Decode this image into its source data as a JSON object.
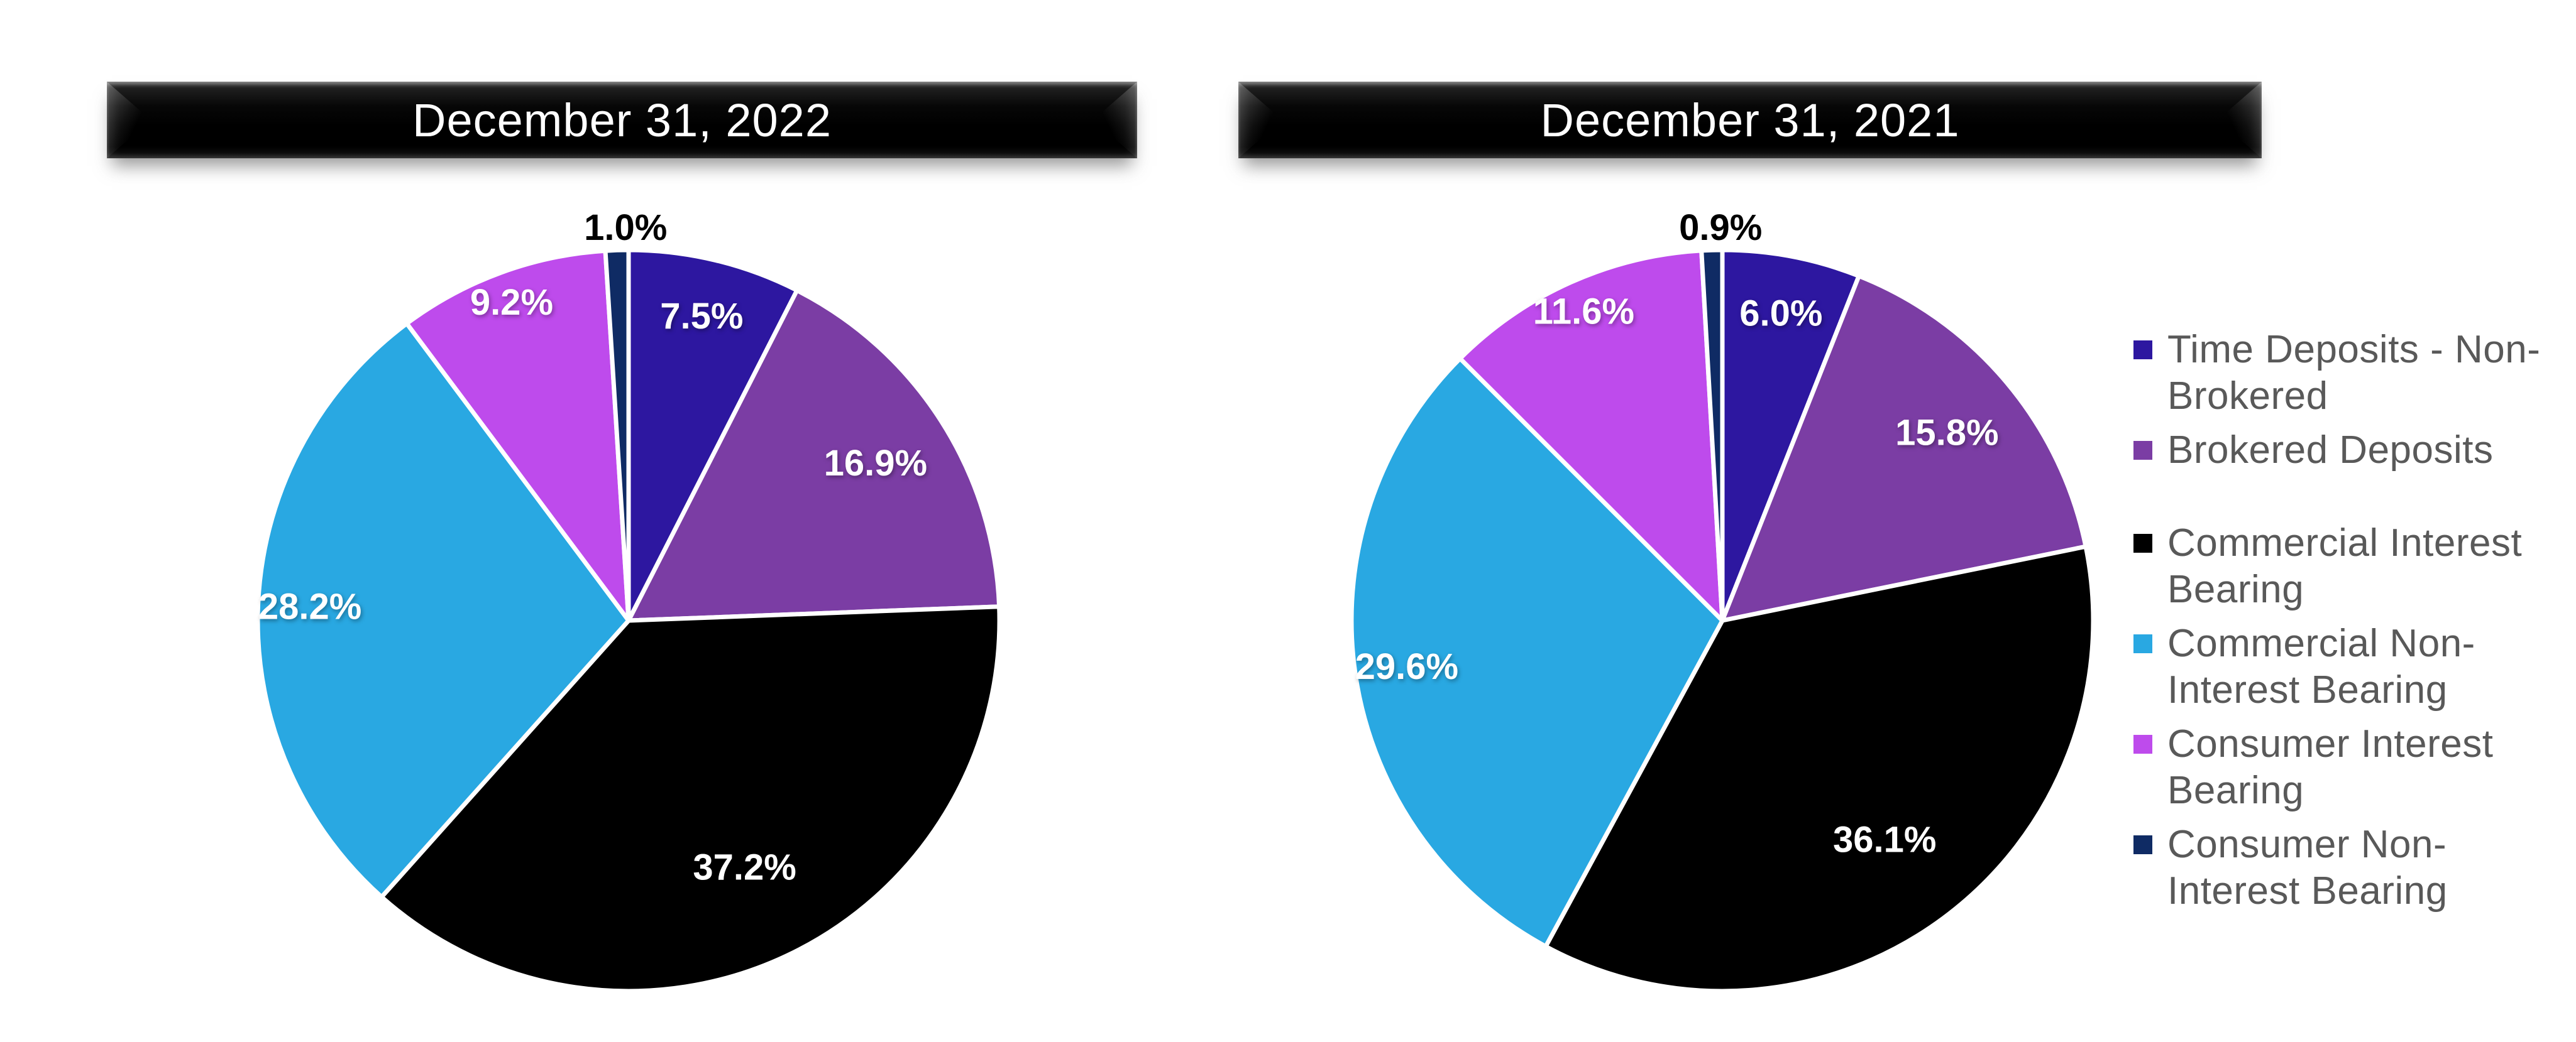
{
  "page": {
    "background_color": "#FFFFFF",
    "legend_text_color": "#595959"
  },
  "chart_data": [
    {
      "type": "pie",
      "title": "December 31, 2022",
      "categories": [
        "Time Deposits - Non-Brokered",
        "Brokered Deposits",
        "Commercial Interest Bearing",
        "Commercial Non-Interest Bearing",
        "Consumer Interest Bearing",
        "Consumer Non-Interest Bearing"
      ],
      "values": [
        7.5,
        16.9,
        37.2,
        28.2,
        9.2,
        1.0
      ],
      "labels": [
        "7.5%",
        "16.9%",
        "37.2%",
        "28.2%",
        "9.2%",
        "1.0%"
      ],
      "colors": [
        "#2D17A0",
        "#7B3DA4",
        "#000000",
        "#29A8E2",
        "#BE4BEC",
        "#0F2B64"
      ],
      "start_angle_deg": 0,
      "direction": "clockwise",
      "slice_border_color": "#FFFFFF",
      "label_color_inside": "#FFFFFF",
      "label_color_outside": "#000000",
      "legend_position": "right"
    },
    {
      "type": "pie",
      "title": "December 31, 2021",
      "categories": [
        "Time Deposits - Non-Brokered",
        "Brokered Deposits",
        "Commercial Interest Bearing",
        "Commercial Non-Interest Bearing",
        "Consumer Interest Bearing",
        "Consumer Non-Interest Bearing"
      ],
      "values": [
        6.0,
        15.8,
        36.1,
        29.6,
        11.6,
        0.9
      ],
      "labels": [
        "6.0%",
        "15.8%",
        "36.1%",
        "29.6%",
        "11.6%",
        "0.9%"
      ],
      "colors": [
        "#2D17A0",
        "#7B3DA4",
        "#000000",
        "#29A8E2",
        "#BE4BEC",
        "#0F2B64"
      ],
      "start_angle_deg": 0,
      "direction": "clockwise",
      "slice_border_color": "#FFFFFF",
      "label_color_inside": "#FFFFFF",
      "label_color_outside": "#000000",
      "legend_position": "right"
    }
  ],
  "legend": {
    "items": [
      {
        "label": "Time Deposits - Non-Brokered",
        "color": "#2D17A0"
      },
      {
        "label": "Brokered Deposits",
        "color": "#7B3DA4"
      },
      {
        "label": "Commercial Interest Bearing",
        "color": "#000000"
      },
      {
        "label": "Commercial Non-Interest Bearing",
        "color": "#29A8E2"
      },
      {
        "label": "Consumer Interest Bearing",
        "color": "#BE4BEC"
      },
      {
        "label": "Consumer Non-Interest Bearing",
        "color": "#0F2B64"
      }
    ]
  }
}
